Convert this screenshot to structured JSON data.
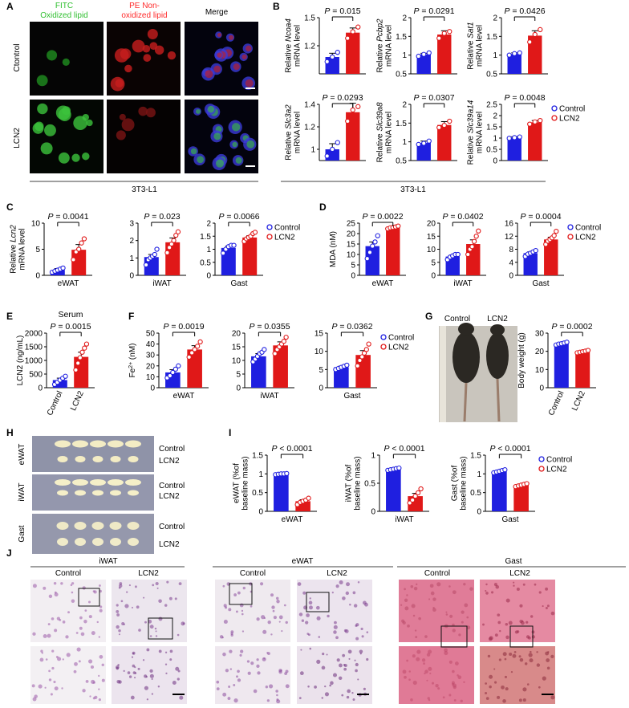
{
  "figure": {
    "panel_letters": [
      "A",
      "B",
      "C",
      "D",
      "E",
      "F",
      "G",
      "H",
      "I",
      "J"
    ],
    "colors": {
      "control": "#1f1fe0",
      "lcn2": "#e01818",
      "fitc": "#33cc33",
      "pe": "#ff2a2a"
    },
    "A": {
      "col_labels": [
        "FITC\nOxidized lipid",
        "PE Non-\noxidized lipid",
        "Merge"
      ],
      "row_labels": [
        "Ctontrol",
        "LCN2"
      ],
      "cell_line": "3T3-L1"
    },
    "B": {
      "cell_line": "3T3-L1"
    },
    "G": {
      "photo_labels": [
        "Control",
        "LCN2"
      ]
    },
    "H": {
      "tissues": [
        {
          "name": "eWAT",
          "rows": [
            "Control",
            "LCN2"
          ]
        },
        {
          "name": "iWAT",
          "rows": [
            "Control",
            "LCN2"
          ]
        },
        {
          "name": "Gast",
          "rows": [
            "Control",
            "LCN2"
          ]
        }
      ]
    },
    "J": {
      "groups": [
        {
          "title": "iWAT",
          "cols": [
            "Control",
            "LCN2"
          ]
        },
        {
          "title": "eWAT",
          "cols": [
            "Control",
            "LCN2"
          ]
        },
        {
          "title": "Gast",
          "cols": [
            "Control",
            "LCN2"
          ]
        }
      ]
    },
    "legend": {
      "control": "Control",
      "lcn2": "LCN2"
    }
  },
  "chart_data": [
    {
      "panel": "B",
      "type": "bar",
      "ylabel": "Relative Ncoa4\nmRNA level",
      "ital": "Ncoa4",
      "categories": [
        "Control",
        "LCN2"
      ],
      "values": [
        1.08,
        1.34
      ],
      "errors": [
        0.04,
        0.05
      ],
      "points": [
        [
          1.03,
          1.08,
          1.13
        ],
        [
          1.28,
          1.35,
          1.4
        ]
      ],
      "ylim": [
        0.9,
        1.5
      ],
      "yticks": [
        1.2,
        1.5
      ],
      "pvalue": "P = 0.015",
      "legend": false
    },
    {
      "panel": "B",
      "type": "bar",
      "ylabel": "Relative Pcbp2\nmRNA level",
      "ital": "Pcbp2",
      "categories": [
        "Control",
        "LCN2"
      ],
      "values": [
        1.02,
        1.55
      ],
      "errors": [
        0.03,
        0.1
      ],
      "points": [
        [
          0.97,
          1.02,
          1.06
        ],
        [
          1.45,
          1.58,
          1.63
        ]
      ],
      "ylim": [
        0.5,
        2
      ],
      "yticks": [
        0.5,
        1,
        1.5,
        2
      ],
      "pvalue": "P = 0.0291",
      "legend": false
    },
    {
      "panel": "B",
      "type": "bar",
      "ylabel": "Relative Sat1\nmRNA level",
      "ital": "Sat1",
      "categories": [
        "Control",
        "LCN2"
      ],
      "values": [
        1.03,
        1.52
      ],
      "errors": [
        0.03,
        0.13
      ],
      "points": [
        [
          1.0,
          1.04,
          1.06
        ],
        [
          1.35,
          1.55,
          1.68
        ]
      ],
      "ylim": [
        0.5,
        2
      ],
      "yticks": [
        0.5,
        1,
        1.5,
        2
      ],
      "pvalue": "P = 0.0426",
      "legend": false
    },
    {
      "panel": "B",
      "type": "bar",
      "ylabel": "Relative Slc3a2\nmRNA level",
      "ital": "Slc3a2",
      "categories": [
        "Control",
        "LCN2"
      ],
      "values": [
        1.0,
        1.33
      ],
      "errors": [
        0.05,
        0.08
      ],
      "points": [
        [
          0.94,
          1.0,
          1.06
        ],
        [
          1.25,
          1.35,
          1.38
        ]
      ],
      "ylim": [
        0.9,
        1.4
      ],
      "yticks": [
        1,
        1.2,
        1.4
      ],
      "pvalue": "P = 0.0293",
      "legend": false
    },
    {
      "panel": "B",
      "type": "bar",
      "ylabel": "Relative Slc39a8\nmRNA level",
      "ital": "Slc39a8",
      "categories": [
        "Control",
        "LCN2"
      ],
      "values": [
        0.97,
        1.45
      ],
      "errors": [
        0.05,
        0.09
      ],
      "points": [
        [
          0.93,
          0.96,
          1.02
        ],
        [
          1.38,
          1.44,
          1.55
        ]
      ],
      "ylim": [
        0.5,
        2
      ],
      "yticks": [
        0.5,
        1,
        1.5,
        2
      ],
      "pvalue": "P = 0.0307",
      "legend": false
    },
    {
      "panel": "B",
      "type": "bar",
      "ylabel": "Relative Slc39a14\nmRNA level",
      "ital": "Slc39a14",
      "categories": [
        "Control",
        "LCN2"
      ],
      "values": [
        1.02,
        1.7
      ],
      "errors": [
        0.04,
        0.08
      ],
      "points": [
        [
          0.99,
          1.02,
          1.05
        ],
        [
          1.62,
          1.72,
          1.78
        ]
      ],
      "ylim": [
        0,
        2.5
      ],
      "yticks": [
        0,
        0.5,
        1,
        1.5,
        2,
        2.5
      ],
      "pvalue": "P = 0.0048",
      "legend": true
    },
    {
      "panel": "C",
      "type": "bar",
      "ylabel": "Relative Lcn2\nmRNA level",
      "ital": "Lcn2",
      "categories": [
        "Control",
        "LCN2"
      ],
      "xlabel": "eWAT",
      "values": [
        1.0,
        4.9
      ],
      "errors": [
        0.3,
        1.0
      ],
      "points": [
        [
          0.6,
          0.8,
          1.0,
          1.2,
          1.4
        ],
        [
          3.0,
          4.5,
          5.0,
          6.2,
          7.0
        ]
      ],
      "ylim": [
        0,
        10
      ],
      "yticks": [
        0,
        5,
        10
      ],
      "pvalue": "P = 0.0041",
      "legend": false
    },
    {
      "panel": "C",
      "type": "bar",
      "ylabel": "",
      "categories": [
        "Control",
        "LCN2"
      ],
      "xlabel": "iWAT",
      "values": [
        1.05,
        1.9
      ],
      "errors": [
        0.15,
        0.25
      ],
      "points": [
        [
          0.6,
          0.9,
          1.0,
          1.1,
          1.2,
          1.5
        ],
        [
          1.3,
          1.6,
          1.8,
          2.0,
          2.3,
          2.5
        ]
      ],
      "ylim": [
        0,
        3
      ],
      "yticks": [
        0,
        1,
        2,
        3
      ],
      "pvalue": "P = 0.023",
      "legend": false
    },
    {
      "panel": "C",
      "type": "bar",
      "ylabel": "",
      "categories": [
        "Control",
        "LCN2"
      ],
      "xlabel": "Gast",
      "values": [
        1.05,
        1.45
      ],
      "errors": [
        0.07,
        0.07
      ],
      "points": [
        [
          0.85,
          1.0,
          1.1,
          1.15,
          1.15
        ],
        [
          1.3,
          1.4,
          1.45,
          1.5,
          1.6,
          1.65
        ]
      ],
      "ylim": [
        0,
        2
      ],
      "yticks": [
        0,
        0.5,
        1,
        1.5,
        2
      ],
      "pvalue": "P = 0.0066",
      "legend": true
    },
    {
      "panel": "D",
      "type": "bar",
      "ylabel": "MDA (nM)",
      "categories": [
        "Control",
        "LCN2"
      ],
      "xlabel": "eWAT",
      "values": [
        14.0,
        23.0
      ],
      "errors": [
        2.0,
        0.4
      ],
      "points": [
        [
          8,
          11,
          14,
          16,
          19
        ],
        [
          22.3,
          22.8,
          23,
          23.2,
          23.6
        ]
      ],
      "ylim": [
        0,
        25
      ],
      "yticks": [
        0,
        5,
        10,
        15,
        20,
        25
      ],
      "pvalue": "P = 0.0022",
      "legend": false
    },
    {
      "panel": "D",
      "type": "bar",
      "ylabel": "",
      "categories": [
        "Control",
        "LCN2"
      ],
      "xlabel": "iWAT",
      "values": [
        7.2,
        12.0
      ],
      "errors": [
        0.6,
        1.6
      ],
      "points": [
        [
          6,
          7,
          7.5,
          8,
          8
        ],
        [
          8,
          10,
          11,
          13,
          15,
          17
        ]
      ],
      "ylim": [
        0,
        20
      ],
      "yticks": [
        0,
        5,
        10,
        15,
        20
      ],
      "pvalue": "P = 0.0402",
      "legend": false
    },
    {
      "panel": "D",
      "type": "bar",
      "ylabel": "",
      "categories": [
        "Control",
        "LCN2"
      ],
      "xlabel": "Gast",
      "values": [
        6.8,
        11.0
      ],
      "errors": [
        0.4,
        0.7
      ],
      "points": [
        [
          5.8,
          6.5,
          6.8,
          7.2,
          7.6
        ],
        [
          9.5,
          10.5,
          11,
          11.5,
          12.2,
          13.5
        ]
      ],
      "ylim": [
        0,
        16
      ],
      "yticks": [
        0,
        4,
        8,
        12,
        16
      ],
      "pvalue": "P = 0.0004",
      "legend": true
    },
    {
      "panel": "E",
      "type": "bar",
      "title": "Serum",
      "ylabel": "LCN2 (ng/mL)",
      "categories": [
        "Control",
        "LCN2"
      ],
      "values": [
        280,
        1130
      ],
      "errors": [
        70,
        170
      ],
      "points": [
        [
          120,
          200,
          280,
          350,
          420
        ],
        [
          650,
          900,
          1100,
          1300,
          1450,
          1600
        ]
      ],
      "ylim": [
        0,
        2000
      ],
      "yticks": [
        0,
        500,
        1000,
        1500,
        2000
      ],
      "pvalue": "P = 0.0015",
      "legend": false,
      "rotate_x": true
    },
    {
      "panel": "F",
      "type": "bar",
      "ylabel": "Fe2+ (nM)",
      "categories": [
        "Control",
        "LCN2"
      ],
      "xlabel": "eWAT",
      "values": [
        14.0,
        35.0
      ],
      "errors": [
        2.5,
        3.5
      ],
      "points": [
        [
          9,
          11,
          14,
          17,
          20
        ],
        [
          28,
          32,
          35,
          38,
          42
        ]
      ],
      "ylim": [
        0,
        50
      ],
      "yticks": [
        0,
        10,
        20,
        30,
        40,
        50
      ],
      "pvalue": "P = 0.0019",
      "legend": false
    },
    {
      "panel": "F",
      "type": "bar",
      "ylabel": "",
      "categories": [
        "Control",
        "LCN2"
      ],
      "xlabel": "iWAT",
      "values": [
        11.5,
        15.5
      ],
      "errors": [
        1.0,
        1.3
      ],
      "points": [
        [
          9.5,
          10.5,
          11.5,
          12.5,
          13,
          14
        ],
        [
          12.5,
          14,
          15,
          16,
          17,
          18.5
        ]
      ],
      "ylim": [
        0,
        20
      ],
      "yticks": [
        0,
        5,
        10,
        15,
        20
      ],
      "pvalue": "P = 0.0355",
      "legend": false
    },
    {
      "panel": "F",
      "type": "bar",
      "ylabel": "",
      "categories": [
        "Control",
        "LCN2"
      ],
      "xlabel": "Gast",
      "values": [
        5.6,
        9.0
      ],
      "errors": [
        0.3,
        1.2
      ],
      "points": [
        [
          5.0,
          5.3,
          5.6,
          5.9,
          6.2
        ],
        [
          6,
          7.5,
          8.5,
          9.5,
          10.5,
          12
        ]
      ],
      "ylim": [
        0,
        15
      ],
      "yticks": [
        0,
        5,
        10,
        15
      ],
      "pvalue": "P = 0.0362",
      "legend": true
    },
    {
      "panel": "G",
      "type": "bar",
      "ylabel": "Body weight (g)",
      "categories": [
        "Control",
        "LCN2"
      ],
      "values": [
        24.2,
        19.8
      ],
      "errors": [
        0.5,
        0.4
      ],
      "points": [
        [
          23.5,
          24,
          24.2,
          24.6,
          25
        ],
        [
          19.2,
          19.5,
          19.8,
          20.1,
          20.5
        ]
      ],
      "ylim": [
        0,
        30
      ],
      "yticks": [
        0,
        10,
        20,
        30
      ],
      "pvalue": "P = 0.0002",
      "legend": false,
      "rotate_x": true
    },
    {
      "panel": "I",
      "type": "bar",
      "ylabel": "eWAT (%of\nbaseline mass)",
      "categories": [
        "Control",
        "LCN2"
      ],
      "xlabel": "eWAT",
      "values": [
        1.0,
        0.27
      ],
      "errors": [
        0.01,
        0.04
      ],
      "points": [
        [
          0.98,
          0.99,
          1.0,
          1.0,
          1.01
        ],
        [
          0.18,
          0.24,
          0.27,
          0.3,
          0.35
        ]
      ],
      "ylim": [
        0,
        1.5
      ],
      "yticks": [
        0,
        0.5,
        1,
        1.5
      ],
      "pvalue": "P < 0.0001",
      "legend": false
    },
    {
      "panel": "I",
      "type": "bar",
      "ylabel": "iWAT (%of\nbaseline mass)",
      "categories": [
        "Control",
        "LCN2"
      ],
      "xlabel": "iWAT",
      "values": [
        0.75,
        0.27
      ],
      "errors": [
        0.01,
        0.05
      ],
      "points": [
        [
          0.73,
          0.74,
          0.75,
          0.76,
          0.77
        ],
        [
          0.15,
          0.2,
          0.27,
          0.33,
          0.4
        ]
      ],
      "ylim": [
        0,
        1
      ],
      "yticks": [
        0,
        0.5,
        1
      ],
      "pvalue": "P < 0.0001",
      "legend": false
    },
    {
      "panel": "I",
      "type": "bar",
      "ylabel": "Gast (%of\nbaseline mass)",
      "categories": [
        "Control",
        "LCN2"
      ],
      "xlabel": "Gast",
      "values": [
        1.07,
        0.7
      ],
      "errors": [
        0.02,
        0.02
      ],
      "points": [
        [
          1.03,
          1.05,
          1.07,
          1.09,
          1.11
        ],
        [
          0.66,
          0.68,
          0.7,
          0.72,
          0.74
        ]
      ],
      "ylim": [
        0,
        1.5
      ],
      "yticks": [
        0,
        0.5,
        1,
        1.5
      ],
      "pvalue": "P < 0.0001",
      "legend": true
    }
  ]
}
